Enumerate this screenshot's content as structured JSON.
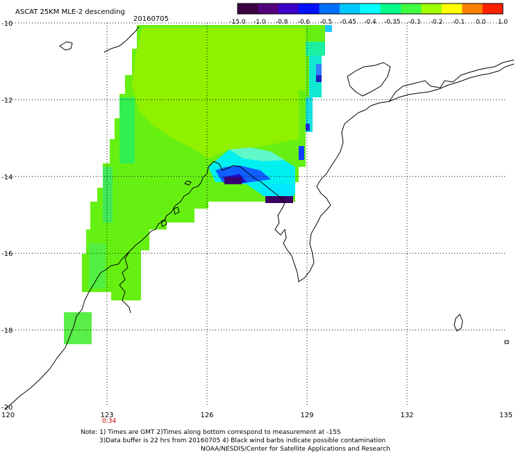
{
  "header": {
    "title": "ASCAT 25KM MLE-2 descending",
    "date": "20160705"
  },
  "colorbar": {
    "labels": [
      "-15.0",
      "-1.0",
      "-0.8",
      "-0.6",
      "-0.5",
      "-0.45",
      "-0.4",
      "-0.35",
      "-0.3",
      "-0.2",
      "-0.1",
      "0.0",
      "1.0"
    ],
    "colors": [
      "#3a0040",
      "#52007a",
      "#3a00c8",
      "#0010ff",
      "#0070ff",
      "#00c8ff",
      "#00ffff",
      "#00ff88",
      "#40ff40",
      "#a0ff00",
      "#ffff00",
      "#ff8000",
      "#ff2000"
    ]
  },
  "axes": {
    "lon_labels": [
      "120",
      "123",
      "126",
      "129",
      "132",
      "135"
    ],
    "lat_labels": [
      "-10",
      "-12",
      "-14",
      "-16",
      "-18",
      "-20"
    ],
    "lon_range": [
      120,
      135
    ],
    "lat_range": [
      -20,
      -10
    ]
  },
  "time_label": "0:34",
  "notes": [
    "Note: 1) Times are GMT 2)Times along bottom correspond to measurement at -15S",
    "3)Data buffer is 22 hrs from 20160705 4) Black wind barbs indicate possible contamination",
    "NOAA/NESDIS/Center for Satellite Applications and Research"
  ]
}
